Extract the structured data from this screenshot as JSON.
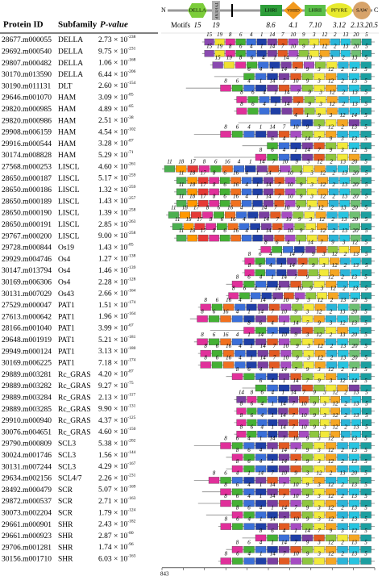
{
  "header": {
    "protein_id": "Protein ID",
    "subfamily": "Subfamily",
    "p_value": "P-value",
    "p_base": "× 10",
    "scale_label": "843",
    "scale_length": 843
  },
  "legend": {
    "n": "N",
    "c": "C",
    "della": "DELLA",
    "tvhynp": "TVHYNP",
    "lhri": "LHRI",
    "vhiid": "VHIID",
    "lhrii": "LHRII",
    "pfyre": "PFYRE",
    "saw": "SAW",
    "motifs": "Motifs",
    "m_della1": "15",
    "m_della2": "19",
    "m_lhri": "8.6",
    "m_vhiid": "4.1",
    "m_lhrii": "7.10",
    "m_pfyre": "3.12",
    "m_saw": "2.13.20.5"
  },
  "motif_colors": {
    "1": "#1f3fa6",
    "2": "#2bb5d8",
    "3": "#f2e93a",
    "4": "#3b6fd8",
    "5": "#1c9fa0",
    "6": "#45b035",
    "7": "#e25a22",
    "8": "#e0309a",
    "9": "#8ec63f",
    "10": "#a64cc2",
    "11": "#4caf50",
    "12": "#f5a623",
    "13": "#27c4e0",
    "14": "#7a3fa0",
    "15": "#8a4ab0",
    "16": "#f07020",
    "17": "#e53935",
    "18": "#ff9800",
    "19": "#f0e030",
    "20": "#6fbf73"
  },
  "rows": [
    {
      "id": "28677.m000055",
      "subfamily": "DELLA",
      "p_mantissa": "2.73",
      "p_exp": "-238",
      "length": 684,
      "motifs": [
        15,
        19,
        8,
        6,
        4,
        1,
        14,
        7,
        10,
        9,
        3,
        12,
        2,
        13,
        20,
        5
      ]
    },
    {
      "id": "29692.m000540",
      "subfamily": "DELLA",
      "p_mantissa": "9.75",
      "p_exp": "-231",
      "length": 684,
      "motifs": [
        15,
        19,
        8,
        6,
        4,
        1,
        14,
        7,
        10,
        9,
        3,
        12,
        2,
        13,
        20,
        5
      ]
    },
    {
      "id": "29807.m000482",
      "subfamily": "DELLA",
      "p_mantissa": "1.06",
      "p_exp": "-168",
      "length": 652,
      "motifs": [
        15,
        19,
        8,
        6,
        4,
        1,
        14,
        7,
        10,
        9,
        3,
        2,
        13,
        5
      ]
    },
    {
      "id": "30170.m013590",
      "subfamily": "DELLA",
      "p_mantissa": "6.44",
      "p_exp": "-206",
      "length": 636,
      "motifs": [
        6,
        4,
        1,
        14,
        7,
        9,
        3,
        12,
        2,
        13,
        5
      ]
    },
    {
      "id": "30190.m011131",
      "subfamily": "DLT",
      "p_mantissa": "2.60",
      "p_exp": "-154",
      "length": 748,
      "motifs": [
        8,
        6,
        4,
        1,
        14,
        7,
        10,
        9,
        3,
        12,
        2,
        13,
        5
      ]
    },
    {
      "id": "29646.m001070",
      "subfamily": "HAM",
      "p_mantissa": "3.09",
      "p_exp": "-85",
      "length": 557,
      "motifs": [
        8,
        6,
        4,
        1,
        14,
        7,
        9,
        3,
        12,
        2,
        13,
        5
      ]
    },
    {
      "id": "29820.m000985",
      "subfamily": "HAM",
      "p_mantissa": "4.89",
      "p_exp": "-85",
      "length": 557,
      "motifs": [
        8,
        6,
        4,
        1,
        14,
        7,
        9,
        3,
        12,
        2,
        13,
        5
      ]
    },
    {
      "id": "29820.m000986",
      "subfamily": "HAM",
      "p_mantissa": "2.51",
      "p_exp": "-38",
      "length": 541,
      "motifs": [
        4,
        1,
        9,
        3,
        12,
        14,
        5
      ]
    },
    {
      "id": "29908.m006159",
      "subfamily": "HAM",
      "p_mantissa": "4.54",
      "p_exp": "-102",
      "length": 716,
      "motifs": [
        8,
        6,
        4,
        1,
        14,
        7,
        10,
        9,
        3,
        12,
        2,
        13,
        5
      ]
    },
    {
      "id": "29916.m000544",
      "subfamily": "HAM",
      "p_mantissa": "3.28",
      "p_exp": "-87",
      "length": 525,
      "motifs": [
        6,
        4,
        1,
        14,
        7,
        9,
        3,
        13,
        5
      ]
    },
    {
      "id": "30174.m008828",
      "subfamily": "HAM",
      "p_mantissa": "5.29",
      "p_exp": "-71",
      "length": 716,
      "motifs": [
        8,
        6,
        4,
        1,
        14,
        7,
        9,
        3,
        12,
        5
      ]
    },
    {
      "id": "27568.m000253",
      "subfamily": "LISCL",
      "p_mantissa": "4.60",
      "p_exp": "-261",
      "length": 843,
      "motifs": [
        11,
        18,
        17,
        8,
        6,
        16,
        4,
        1,
        14,
        7,
        10,
        9,
        3,
        12,
        2,
        13,
        20,
        5
      ]
    },
    {
      "id": "28650.m000187",
      "subfamily": "LISCL",
      "p_mantissa": "5.17",
      "p_exp": "-259",
      "length": 795,
      "motifs": [
        11,
        18,
        17,
        8,
        6,
        16,
        4,
        1,
        14,
        7,
        10,
        9,
        3,
        12,
        2,
        13,
        20,
        5
      ]
    },
    {
      "id": "28650.m000186",
      "subfamily": "LISCL",
      "p_mantissa": "1.32",
      "p_exp": "-259",
      "length": 795,
      "motifs": [
        11,
        18,
        17,
        8,
        6,
        16,
        4,
        1,
        14,
        7,
        10,
        9,
        3,
        12,
        2,
        13,
        20,
        5
      ]
    },
    {
      "id": "28650.m000189",
      "subfamily": "LISCL",
      "p_mantissa": "1.43",
      "p_exp": "-257",
      "length": 795,
      "motifs": [
        11,
        18,
        17,
        8,
        6,
        16,
        4,
        1,
        14,
        7,
        10,
        9,
        3,
        12,
        2,
        13,
        20,
        5
      ]
    },
    {
      "id": "28650.m000190",
      "subfamily": "LISCL",
      "p_mantissa": "1.39",
      "p_exp": "-258",
      "length": 827,
      "motifs": [
        11,
        18,
        17,
        8,
        6,
        16,
        4,
        1,
        14,
        7,
        10,
        9,
        3,
        12,
        2,
        13,
        20,
        5
      ]
    },
    {
      "id": "28650.m000191",
      "subfamily": "LISCL",
      "p_mantissa": "2.85",
      "p_exp": "-263",
      "length": 811,
      "motifs": [
        11,
        18,
        17,
        8,
        6,
        16,
        4,
        1,
        14,
        7,
        10,
        9,
        3,
        12,
        2,
        13,
        20,
        5
      ]
    },
    {
      "id": "29767.m000200",
      "subfamily": "LISCL",
      "p_mantissa": "9.00",
      "p_exp": "-258",
      "length": 795,
      "motifs": [
        11,
        18,
        17,
        8,
        6,
        16,
        4,
        1,
        14,
        7,
        10,
        9,
        3,
        12,
        2,
        13,
        20,
        5
      ]
    },
    {
      "id": "29728.m000844",
      "subfamily": "Os19",
      "p_mantissa": "1.43",
      "p_exp": "-85",
      "length": 461,
      "motifs": [
        8,
        6,
        4,
        1,
        14,
        7,
        9,
        3,
        12,
        5
      ]
    },
    {
      "id": "29929.m004746",
      "subfamily": "Os4",
      "p_mantissa": "1.27",
      "p_exp": "-138",
      "length": 525,
      "motifs": [
        8,
        6,
        4,
        1,
        14,
        7,
        9,
        3,
        12,
        2,
        13,
        5
      ]
    },
    {
      "id": "30147.m013794",
      "subfamily": "Os4",
      "p_mantissa": "1.46",
      "p_exp": "-139",
      "length": 525,
      "motifs": [
        8,
        6,
        4,
        1,
        14,
        7,
        9,
        3,
        12,
        2,
        13,
        5
      ]
    },
    {
      "id": "30169.m006306",
      "subfamily": "Os4",
      "p_mantissa": "2.28",
      "p_exp": "-128",
      "length": 589,
      "motifs": [
        8,
        6,
        4,
        1,
        14,
        7,
        9,
        3,
        12,
        2,
        13,
        5
      ]
    },
    {
      "id": "30131.m007029",
      "subfamily": "Os43",
      "p_mantissa": "2.66",
      "p_exp": "-164",
      "length": 589,
      "motifs": [
        8,
        6,
        4,
        1,
        14,
        7,
        10,
        9,
        3,
        12,
        2,
        13,
        5
      ]
    },
    {
      "id": "27529.m000047",
      "subfamily": "PAT1",
      "p_mantissa": "1.51",
      "p_exp": "-174",
      "length": 700,
      "motifs": [
        8,
        6,
        16,
        4,
        1,
        14,
        7,
        10,
        9,
        3,
        12,
        2,
        13,
        20,
        5
      ]
    },
    {
      "id": "27613.m000642",
      "subfamily": "PAT1",
      "p_mantissa": "1.96",
      "p_exp": "-164",
      "length": 732,
      "motifs": [
        8,
        6,
        16,
        4,
        1,
        14,
        7,
        10,
        9,
        3,
        12,
        2,
        13,
        20,
        5
      ]
    },
    {
      "id": "28166.m001040",
      "subfamily": "PAT1",
      "p_mantissa": "3.99",
      "p_exp": "-67",
      "length": 652,
      "motifs": [
        8,
        6,
        4,
        1,
        14,
        7,
        9,
        3,
        12,
        13,
        5
      ]
    },
    {
      "id": "29648.m001919",
      "subfamily": "PAT1",
      "p_mantissa": "5.21",
      "p_exp": "-181",
      "length": 716,
      "motifs": [
        8,
        6,
        16,
        4,
        1,
        14,
        7,
        10,
        9,
        3,
        12,
        2,
        13,
        20,
        5
      ]
    },
    {
      "id": "29949.m000124",
      "subfamily": "PAT1",
      "p_mantissa": "3.13",
      "p_exp": "-180",
      "length": 700,
      "motifs": [
        8,
        6,
        16,
        4,
        1,
        14,
        7,
        10,
        9,
        3,
        12,
        2,
        13,
        20,
        5
      ]
    },
    {
      "id": "30169.m006225",
      "subfamily": "PAT1",
      "p_mantissa": "7.18",
      "p_exp": "-174",
      "length": 700,
      "motifs": [
        8,
        6,
        16,
        4,
        1,
        14,
        7,
        10,
        9,
        3,
        12,
        2,
        13,
        20,
        5
      ]
    },
    {
      "id": "29889.m003281",
      "subfamily": "Rc_GRAS",
      "p_mantissa": "4.20",
      "p_exp": "-87",
      "length": 589,
      "motifs": [
        8,
        6,
        4,
        1,
        14,
        7,
        9,
        3,
        12,
        2,
        13,
        5
      ]
    },
    {
      "id": "29889.m003282",
      "subfamily": "Rc_GRAS",
      "p_mantissa": "9.27",
      "p_exp": "-75",
      "length": 525,
      "motifs": [
        6,
        4,
        1,
        14,
        7,
        9,
        3,
        12,
        14,
        5
      ]
    },
    {
      "id": "29889.m003284",
      "subfamily": "Rc_GRAS",
      "p_mantissa": "2.13",
      "p_exp": "-117",
      "length": 557,
      "motifs": [
        14,
        8,
        6,
        4,
        1,
        14,
        7,
        9,
        3,
        12,
        2,
        13,
        5
      ]
    },
    {
      "id": "29889.m003285",
      "subfamily": "Rc_GRAS",
      "p_mantissa": "9.90",
      "p_exp": "-131",
      "length": 557,
      "motifs": [
        8,
        6,
        4,
        1,
        14,
        7,
        10,
        9,
        3,
        12,
        2,
        13,
        5
      ]
    },
    {
      "id": "29910.m000940",
      "subfamily": "Rc_GRAS",
      "p_mantissa": "4.37",
      "p_exp": "-125",
      "length": 557,
      "motifs": [
        8,
        6,
        4,
        1,
        14,
        7,
        10,
        9,
        3,
        12,
        2,
        13,
        5
      ]
    },
    {
      "id": "30076.m004651",
      "subfamily": "Rc_GRAS",
      "p_mantissa": "4.60",
      "p_exp": "-150",
      "length": 557,
      "motifs": [
        8,
        6,
        4,
        1,
        14,
        7,
        10,
        9,
        3,
        12,
        2,
        13,
        5
      ]
    },
    {
      "id": "29790.m000809",
      "subfamily": "SCL3",
      "p_mantissa": "5.38",
      "p_exp": "-202",
      "length": 716,
      "motifs": [
        8,
        6,
        4,
        1,
        14,
        7,
        10,
        9,
        3,
        12,
        2,
        13,
        5
      ]
    },
    {
      "id": "30024.m001746",
      "subfamily": "SCL3",
      "p_mantissa": "1.56",
      "p_exp": "-144",
      "length": 589,
      "motifs": [
        8,
        6,
        4,
        1,
        14,
        7,
        9,
        3,
        12,
        2,
        13,
        5
      ]
    },
    {
      "id": "30131.m007244",
      "subfamily": "SCL3",
      "p_mantissa": "4.29",
      "p_exp": "-167",
      "length": 589,
      "motifs": [
        8,
        6,
        4,
        1,
        14,
        7,
        9,
        3,
        12,
        2,
        13,
        5
      ]
    },
    {
      "id": "29634.m002156",
      "subfamily": "SCL4/7",
      "p_mantissa": "2.26",
      "p_exp": "-231",
      "length": 716,
      "motifs": [
        8,
        6,
        4,
        1,
        14,
        7,
        10,
        9,
        3,
        12,
        2,
        13,
        20,
        5
      ]
    },
    {
      "id": "28492.m000479",
      "subfamily": "SCR",
      "p_mantissa": "5.07",
      "p_exp": "-169",
      "length": 684,
      "motifs": [
        8,
        6,
        4,
        1,
        14,
        7,
        10,
        9,
        3,
        12,
        2,
        13,
        5
      ]
    },
    {
      "id": "29872.m000537",
      "subfamily": "SCR",
      "p_mantissa": "2.71",
      "p_exp": "-163",
      "length": 700,
      "motifs": [
        8,
        6,
        4,
        1,
        14,
        7,
        10,
        9,
        3,
        12,
        2,
        13,
        5
      ]
    },
    {
      "id": "30073.m002204",
      "subfamily": "SCR",
      "p_mantissa": "1.79",
      "p_exp": "-124",
      "length": 668,
      "motifs": [
        8,
        6,
        4,
        1,
        14,
        7,
        9,
        3,
        12,
        2,
        13,
        5
      ]
    },
    {
      "id": "29661.m000901",
      "subfamily": "SHR",
      "p_mantissa": "2.43",
      "p_exp": "-182",
      "length": 620,
      "motifs": [
        8,
        6,
        4,
        1,
        14,
        7,
        10,
        9,
        3,
        12,
        2,
        13,
        5
      ]
    },
    {
      "id": "29661.m000923",
      "subfamily": "SHR",
      "p_mantissa": "2.87",
      "p_exp": "-80",
      "length": 525,
      "motifs": [
        8,
        6,
        4,
        1,
        14,
        7,
        9,
        3,
        12,
        5
      ]
    },
    {
      "id": "29706.m001281",
      "subfamily": "SHR",
      "p_mantissa": "1.74",
      "p_exp": "-96",
      "length": 589,
      "motifs": [
        8,
        6,
        4,
        1,
        14,
        7,
        9,
        3,
        12,
        2,
        13,
        5
      ]
    },
    {
      "id": "30156.m001710",
      "subfamily": "SHR",
      "p_mantissa": "6.03",
      "p_exp": "-163",
      "length": 620,
      "motifs": [
        8,
        6,
        4,
        1,
        14,
        7,
        10,
        9,
        3,
        12,
        2,
        13,
        5
      ]
    }
  ]
}
